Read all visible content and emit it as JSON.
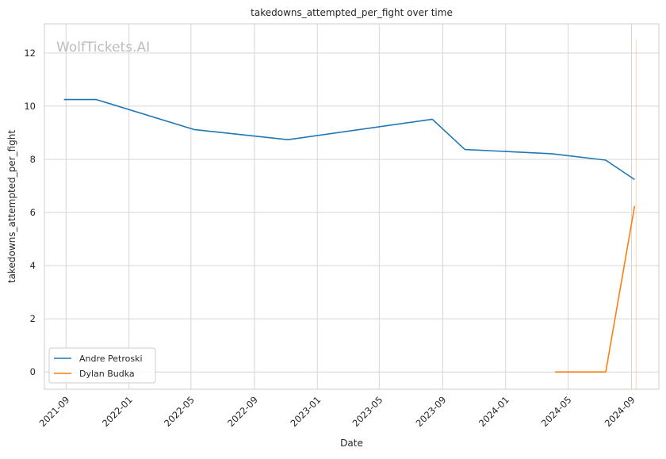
{
  "chart_data": {
    "type": "line",
    "title": "takedowns_attempted_per_fight over time",
    "xlabel": "Date",
    "ylabel": "takedowns_attempted_per_fight",
    "watermark": "WolfTickets.AI",
    "xlim": [
      "2021-07-21",
      "2024-10-24"
    ],
    "ylim": [
      -0.65,
      13.1
    ],
    "x_ticks": [
      "2021-09",
      "2022-01",
      "2022-05",
      "2022-09",
      "2023-01",
      "2023-05",
      "2023-09",
      "2024-01",
      "2024-05",
      "2024-09"
    ],
    "y_ticks": [
      0,
      2,
      4,
      6,
      8,
      10,
      12
    ],
    "grid": true,
    "legend_position": "lower-left",
    "series": [
      {
        "name": "Andre Petroski",
        "color": "#1f77b4",
        "x": [
          "2021-08-28",
          "2021-10-30",
          "2022-05-07",
          "2022-11-05",
          "2023-08-12",
          "2023-10-14",
          "2024-03-30",
          "2024-07-13",
          "2024-09-07"
        ],
        "y": [
          10.25,
          10.25,
          9.12,
          8.74,
          9.51,
          8.37,
          8.21,
          7.97,
          7.24
        ]
      },
      {
        "name": "Dylan Budka",
        "color": "#ff7f0e",
        "x": [
          "2024-04-06",
          "2024-07-13",
          "2024-09-07"
        ],
        "y": [
          0.0,
          0.0,
          6.25
        ]
      }
    ],
    "annotation_line": {
      "x": "2024-09-10",
      "y_top": 12.5,
      "color": "#ff7f0e"
    }
  }
}
